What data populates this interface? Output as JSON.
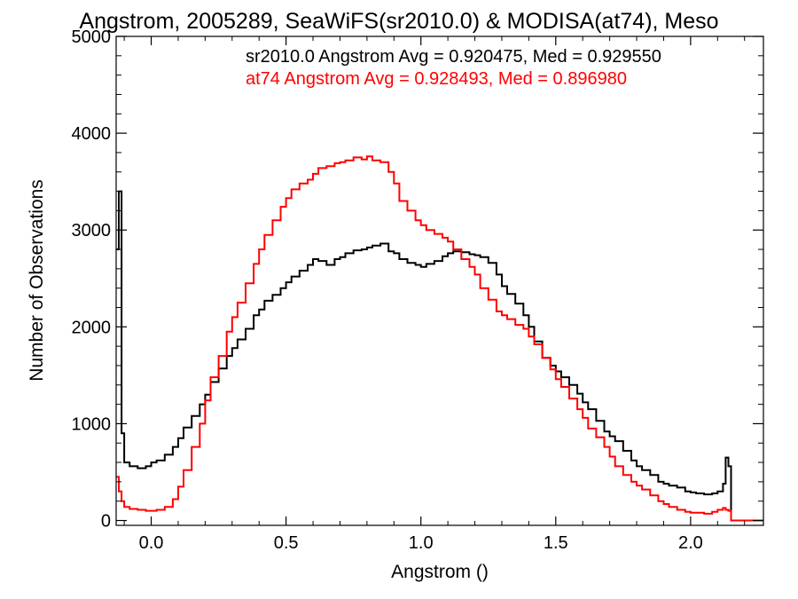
{
  "chart_data": {
    "type": "line",
    "title": "Angstrom, 2005289, SeaWiFS(sr2010.0) & MODISA(at74), Meso",
    "xlabel": "Angstrom ()",
    "ylabel": "Number of Observations",
    "xlim": [
      -0.13,
      2.27
    ],
    "ylim": [
      -50,
      5000
    ],
    "x_ticks": [
      0.0,
      0.5,
      1.0,
      1.5,
      2.0
    ],
    "x_tick_labels": [
      "0.0",
      "0.5",
      "1.0",
      "1.5",
      "2.0"
    ],
    "y_ticks": [
      0,
      1000,
      2000,
      3000,
      4000,
      5000
    ],
    "y_tick_labels": [
      "0",
      "1000",
      "2000",
      "3000",
      "4000",
      "5000"
    ],
    "grid": false,
    "annotations": [
      {
        "text": "sr2010.0 Angstrom Avg = 0.920475, Med = 0.929550",
        "color": "#000000"
      },
      {
        "text": "at74 Angstrom Avg = 0.928493, Med = 0.896980",
        "color": "#ff0000"
      }
    ],
    "series": [
      {
        "color": "#000000",
        "x": [
          -0.13,
          -0.12,
          -0.11,
          -0.1,
          -0.08,
          -0.05,
          -0.02,
          0.0,
          0.02,
          0.05,
          0.08,
          0.1,
          0.12,
          0.15,
          0.18,
          0.2,
          0.22,
          0.25,
          0.28,
          0.3,
          0.32,
          0.35,
          0.38,
          0.4,
          0.42,
          0.45,
          0.48,
          0.5,
          0.52,
          0.55,
          0.58,
          0.6,
          0.62,
          0.65,
          0.68,
          0.7,
          0.72,
          0.75,
          0.78,
          0.8,
          0.82,
          0.85,
          0.88,
          0.9,
          0.92,
          0.95,
          0.98,
          1.0,
          1.02,
          1.05,
          1.08,
          1.1,
          1.12,
          1.15,
          1.18,
          1.2,
          1.22,
          1.25,
          1.28,
          1.3,
          1.32,
          1.35,
          1.38,
          1.4,
          1.42,
          1.45,
          1.48,
          1.5,
          1.52,
          1.55,
          1.58,
          1.6,
          1.62,
          1.65,
          1.68,
          1.7,
          1.72,
          1.75,
          1.78,
          1.8,
          1.82,
          1.85,
          1.88,
          1.9,
          1.92,
          1.95,
          1.98,
          2.0,
          2.02,
          2.05,
          2.08,
          2.1,
          2.12,
          2.13,
          2.14,
          2.15,
          2.16,
          2.2,
          2.27
        ],
        "values": [
          2800,
          3400,
          900,
          600,
          560,
          540,
          560,
          600,
          620,
          680,
          760,
          850,
          960,
          1080,
          1200,
          1300,
          1430,
          1570,
          1700,
          1780,
          1870,
          1980,
          2120,
          2180,
          2270,
          2330,
          2400,
          2460,
          2520,
          2580,
          2640,
          2700,
          2680,
          2640,
          2700,
          2720,
          2760,
          2790,
          2800,
          2820,
          2840,
          2860,
          2780,
          2760,
          2700,
          2660,
          2640,
          2620,
          2650,
          2680,
          2730,
          2760,
          2780,
          2770,
          2750,
          2740,
          2720,
          2660,
          2540,
          2420,
          2340,
          2240,
          2120,
          2000,
          1850,
          1680,
          1600,
          1540,
          1480,
          1400,
          1310,
          1220,
          1150,
          1030,
          920,
          870,
          820,
          720,
          620,
          560,
          520,
          470,
          400,
          380,
          360,
          340,
          300,
          290,
          280,
          270,
          280,
          300,
          380,
          650,
          560,
          0,
          0,
          0,
          0
        ]
      },
      {
        "color": "#ff0000",
        "x": [
          -0.13,
          -0.12,
          -0.11,
          -0.1,
          -0.08,
          -0.05,
          -0.02,
          0.0,
          0.02,
          0.05,
          0.08,
          0.1,
          0.12,
          0.15,
          0.18,
          0.2,
          0.22,
          0.25,
          0.28,
          0.3,
          0.32,
          0.35,
          0.38,
          0.4,
          0.42,
          0.45,
          0.48,
          0.5,
          0.52,
          0.55,
          0.58,
          0.6,
          0.62,
          0.65,
          0.68,
          0.7,
          0.72,
          0.75,
          0.78,
          0.8,
          0.82,
          0.85,
          0.88,
          0.9,
          0.92,
          0.95,
          0.98,
          1.0,
          1.02,
          1.05,
          1.08,
          1.1,
          1.12,
          1.15,
          1.18,
          1.2,
          1.22,
          1.25,
          1.28,
          1.3,
          1.32,
          1.35,
          1.38,
          1.4,
          1.42,
          1.45,
          1.48,
          1.5,
          1.52,
          1.55,
          1.58,
          1.6,
          1.62,
          1.65,
          1.68,
          1.7,
          1.72,
          1.75,
          1.78,
          1.8,
          1.82,
          1.85,
          1.88,
          1.9,
          1.92,
          1.95,
          1.98,
          2.0,
          2.02,
          2.05,
          2.08,
          2.1,
          2.12,
          2.13,
          2.14,
          2.15,
          2.16,
          2.2,
          2.27
        ],
        "values": [
          450,
          300,
          200,
          140,
          120,
          110,
          100,
          100,
          110,
          140,
          220,
          350,
          520,
          760,
          1000,
          1240,
          1480,
          1700,
          1950,
          2100,
          2250,
          2450,
          2650,
          2800,
          2950,
          3100,
          3240,
          3330,
          3420,
          3480,
          3520,
          3580,
          3640,
          3660,
          3690,
          3700,
          3720,
          3750,
          3730,
          3760,
          3720,
          3700,
          3600,
          3480,
          3300,
          3200,
          3100,
          3050,
          3000,
          2960,
          2920,
          2880,
          2800,
          2700,
          2620,
          2540,
          2400,
          2280,
          2160,
          2120,
          2080,
          2020,
          1980,
          1900,
          1820,
          1680,
          1560,
          1460,
          1380,
          1260,
          1150,
          1060,
          950,
          860,
          760,
          660,
          560,
          470,
          400,
          360,
          320,
          260,
          200,
          170,
          140,
          110,
          90,
          80,
          80,
          70,
          90,
          110,
          130,
          110,
          100,
          0,
          0,
          0,
          0
        ]
      }
    ]
  }
}
